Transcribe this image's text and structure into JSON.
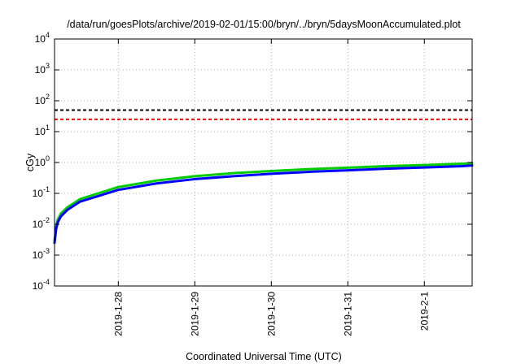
{
  "chart_data": {
    "type": "line",
    "title": "/data/run/goesPlots/archive/2019-02-01/15:00/bryn/../bryn/5daysMoonAccumulated.plot",
    "xlabel": "Coordinated Universal Time (UTC)",
    "ylabel": "cGy",
    "yscale": "log",
    "ylim": [
      0.0001,
      10000
    ],
    "xlim": [
      "2019-01-27 04:00",
      "2019-02-01 15:00"
    ],
    "grid": true,
    "legend": "none",
    "y_ticks": [
      {
        "value": 0.0001,
        "base": "10",
        "exp": "-4"
      },
      {
        "value": 0.001,
        "base": "10",
        "exp": "-3"
      },
      {
        "value": 0.01,
        "base": "10",
        "exp": "-2"
      },
      {
        "value": 0.1,
        "base": "10",
        "exp": "-1"
      },
      {
        "value": 1,
        "base": "10",
        "exp": "0"
      },
      {
        "value": 10,
        "base": "10",
        "exp": "1"
      },
      {
        "value": 100,
        "base": "10",
        "exp": "2"
      },
      {
        "value": 1000,
        "base": "10",
        "exp": "3"
      },
      {
        "value": 10000,
        "base": "10",
        "exp": "4"
      }
    ],
    "x_ticks": [
      {
        "value": "2019-01-28",
        "label": "2019-1-28"
      },
      {
        "value": "2019-01-29",
        "label": "2019-1-29"
      },
      {
        "value": "2019-01-30",
        "label": "2019-1-30"
      },
      {
        "value": "2019-01-31",
        "label": "2019-1-31"
      },
      {
        "value": "2019-02-01",
        "label": "2019-2-1"
      }
    ],
    "thresholds": [
      {
        "value": 50,
        "color": "#000000",
        "style": "dashed"
      },
      {
        "value": 25,
        "color": "#ff0000",
        "style": "dashed"
      }
    ],
    "series": [
      {
        "color": "#00cc00",
        "x": [
          "2019-01-27 04:00",
          "2019-01-27 04:30",
          "2019-01-27 05:00",
          "2019-01-27 06:00",
          "2019-01-27 08:00",
          "2019-01-27 12:00",
          "2019-01-28 00:00",
          "2019-01-28 12:00",
          "2019-01-29 00:00",
          "2019-01-29 12:00",
          "2019-01-30 00:00",
          "2019-01-30 12:00",
          "2019-01-31 00:00",
          "2019-01-31 12:00",
          "2019-02-01 00:00",
          "2019-02-01 12:00",
          "2019-02-01 15:00"
        ],
        "values": [
          0.003,
          0.0085,
          0.014,
          0.022,
          0.035,
          0.065,
          0.16,
          0.26,
          0.36,
          0.45,
          0.53,
          0.61,
          0.68,
          0.76,
          0.83,
          0.91,
          0.96
        ]
      },
      {
        "color": "#0000ff",
        "x": [
          "2019-01-27 04:00",
          "2019-01-27 04:30",
          "2019-01-27 05:00",
          "2019-01-27 06:00",
          "2019-01-27 08:00",
          "2019-01-27 12:00",
          "2019-01-28 00:00",
          "2019-01-28 12:00",
          "2019-01-29 00:00",
          "2019-01-29 12:00",
          "2019-01-30 00:00",
          "2019-01-30 12:00",
          "2019-01-31 00:00",
          "2019-01-31 12:00",
          "2019-02-01 00:00",
          "2019-02-01 12:00",
          "2019-02-01 15:00"
        ],
        "values": [
          0.0025,
          0.007,
          0.0115,
          0.018,
          0.029,
          0.054,
          0.13,
          0.21,
          0.29,
          0.36,
          0.43,
          0.5,
          0.56,
          0.63,
          0.69,
          0.76,
          0.8
        ]
      }
    ]
  }
}
